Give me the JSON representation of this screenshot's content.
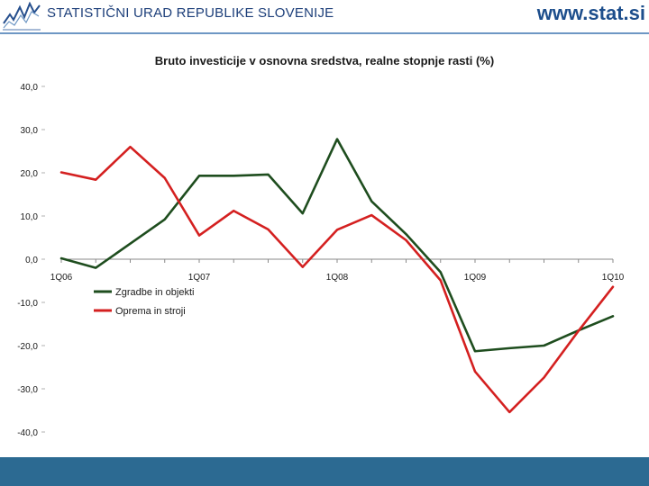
{
  "header": {
    "org_name": "STATISTIČNI URAD REPUBLIKE SLOVENIJE",
    "site_url": "www.stat.si"
  },
  "colors": {
    "header_text": "#1d3f7a",
    "footer_bar": "#2c6a92",
    "series_buildings": "#1e4d1e",
    "series_equipment": "#d42020"
  },
  "chart_data": {
    "type": "line",
    "title": "Bruto investicije v osnovna sredstva, realne stopnje rasti (%)",
    "xlabel": "",
    "ylabel": "",
    "ylim": [
      -40,
      40
    ],
    "yticks": [
      40,
      30,
      20,
      10,
      0,
      -10,
      -20,
      -30,
      -40
    ],
    "ytick_labels": [
      "40,0",
      "30,0",
      "20,0",
      "10,0",
      "0,0",
      "-10,0",
      "-20,0",
      "-30,0",
      "-40,0"
    ],
    "x": [
      0,
      1,
      2,
      3,
      4,
      5,
      6,
      7,
      8,
      9,
      10,
      11,
      12,
      13,
      14,
      15,
      16
    ],
    "xtick_positions": [
      0,
      4,
      8,
      12,
      16
    ],
    "xtick_labels": [
      "1Q06",
      "1Q07",
      "1Q08",
      "1Q09",
      "1Q10"
    ],
    "grid": false,
    "legend_placement": "center-left",
    "series": [
      {
        "name": "Zgradbe in objekti",
        "color": "#1e4d1e",
        "values": [
          0.2,
          -2.0,
          3.6,
          9.2,
          19.3,
          19.3,
          19.6,
          10.6,
          27.8,
          13.4,
          5.8,
          -3.0,
          -21.3,
          -20.6,
          -20.0,
          -16.5,
          -13.2
        ]
      },
      {
        "name": "Oprema in stroji",
        "color": "#d42020",
        "values": [
          20.1,
          18.4,
          26.0,
          18.8,
          5.5,
          11.2,
          6.9,
          -1.8,
          6.8,
          10.2,
          4.4,
          -4.9,
          -26.0,
          -35.4,
          -27.4,
          -16.6,
          -6.4
        ]
      }
    ]
  }
}
